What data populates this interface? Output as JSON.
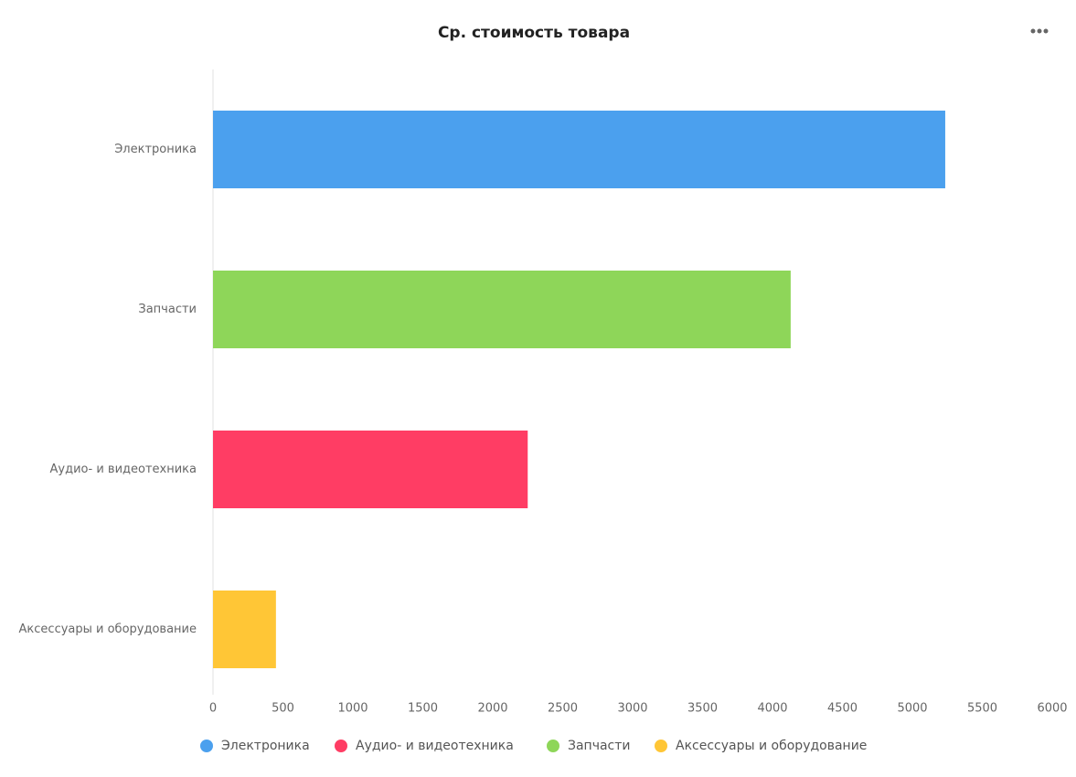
{
  "chart_data": {
    "type": "bar",
    "orientation": "horizontal",
    "title": "Ср. стоимость товара",
    "categories": [
      "Электроника",
      "Запчасти",
      "Аудио- и видеотехника",
      "Аксессуары и оборудование"
    ],
    "series": [
      {
        "name": "Электроника",
        "color": "#4ba0ee",
        "values": [
          5235,
          null,
          null,
          null
        ]
      },
      {
        "name": "Аудио- и видеотехника",
        "color": "#ff3d64",
        "values": [
          null,
          null,
          2250,
          null
        ]
      },
      {
        "name": "Запчасти",
        "color": "#8ed659",
        "values": [
          null,
          4130,
          null,
          null
        ]
      },
      {
        "name": "Аксессуары и оборудование",
        "color": "#ffc636",
        "values": [
          null,
          null,
          null,
          450
        ]
      }
    ],
    "xlim": [
      0,
      6000
    ],
    "xticks": [
      0,
      500,
      1000,
      1500,
      2000,
      2500,
      3000,
      3500,
      4000,
      4500,
      5000,
      5500,
      6000
    ],
    "grid": false,
    "legend": "bottom"
  }
}
